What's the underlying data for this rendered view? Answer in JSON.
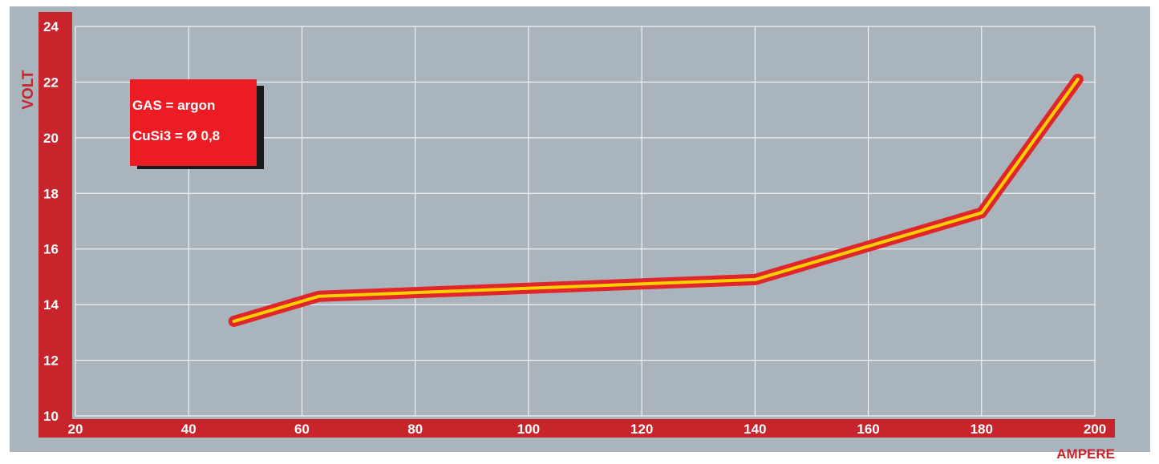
{
  "colors": {
    "background": "#aab4bc",
    "frame": "#c8242b",
    "grid": "#ffffff",
    "line_outer": "#e0262b",
    "line_inner": "#f7d000",
    "tick_text": "#ffffff",
    "box_fill": "#ed1c24",
    "box_shadow": "#1a1a1a"
  },
  "legend_box": {
    "line1": "GAS = argon",
    "line2": "CuSi3 = Ø 0,8"
  },
  "chart_data": {
    "type": "line",
    "xlabel": "AMPERE",
    "ylabel": "VOLT",
    "xlim": [
      20,
      200
    ],
    "ylim": [
      10,
      24
    ],
    "xticks": [
      "20",
      "40",
      "60",
      "80",
      "100",
      "120",
      "140",
      "160",
      "180",
      "200"
    ],
    "yticks": [
      "10",
      "12",
      "14",
      "16",
      "18",
      "20",
      "22",
      "24"
    ],
    "grid": true,
    "series": [
      {
        "x": [
          48,
          63,
          140,
          180,
          197
        ],
        "y": [
          13.4,
          14.3,
          14.9,
          17.3,
          22.1
        ]
      }
    ]
  }
}
